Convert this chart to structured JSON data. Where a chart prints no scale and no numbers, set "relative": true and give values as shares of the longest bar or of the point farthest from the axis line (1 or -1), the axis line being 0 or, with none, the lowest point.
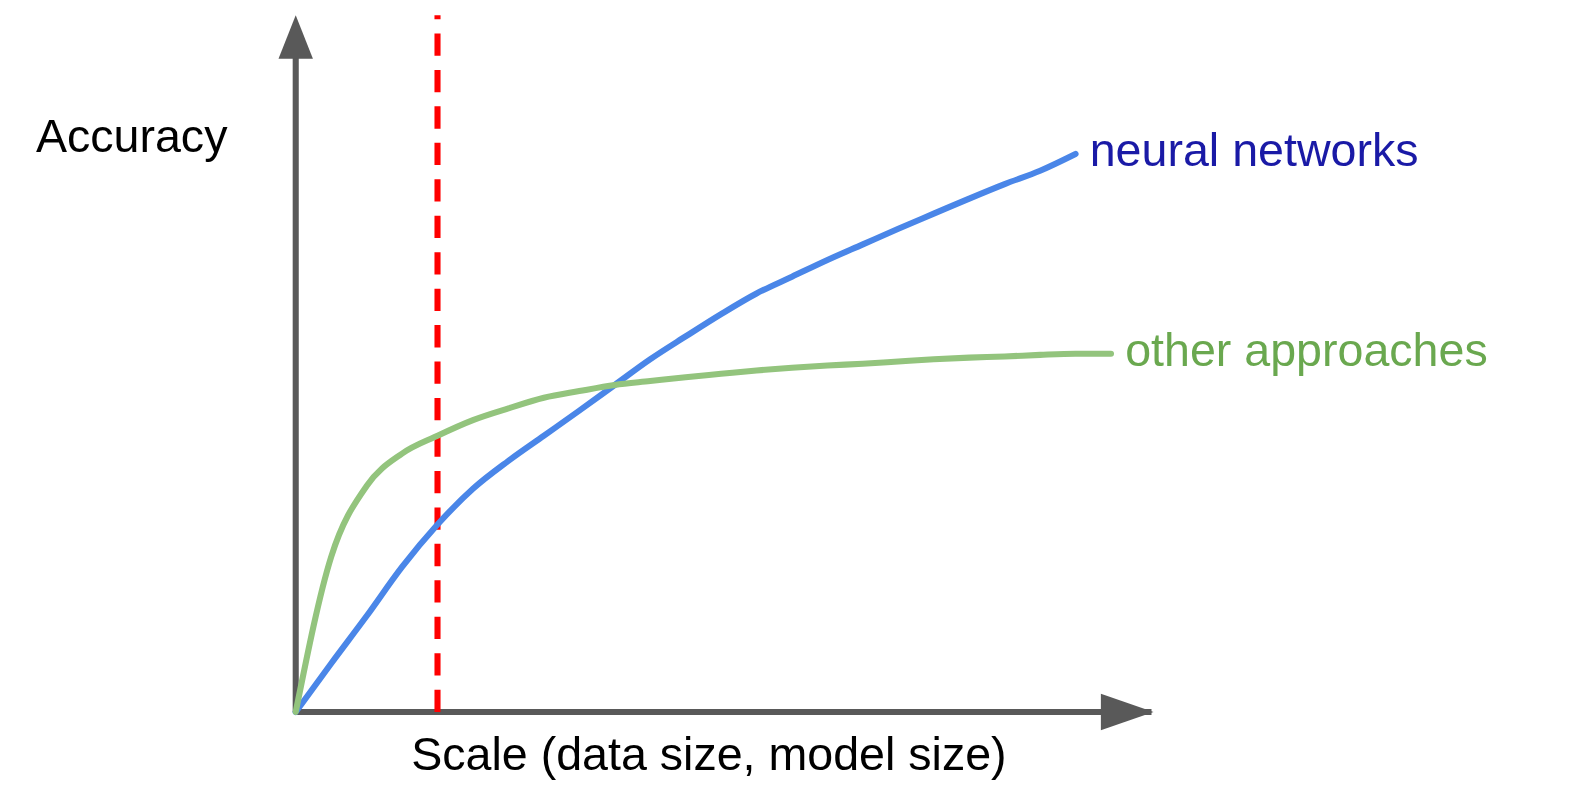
{
  "chart_data": {
    "type": "line",
    "relative": true,
    "xlabel": "Scale (data size, model size)",
    "ylabel": "Accuracy",
    "categories": [
      null,
      null,
      null,
      null,
      null,
      null,
      null,
      null,
      null,
      null,
      null,
      null,
      null,
      null,
      null,
      null,
      null,
      null,
      null,
      null,
      null,
      null,
      null,
      null
    ],
    "series": [
      {
        "name": "neural networks",
        "color": "#4a86e8",
        "values": [
          0,
          0.087,
          0.172,
          0.26,
          0.336,
          0.4,
          0.45,
          0.495,
          0.54,
          0.586,
          0.632,
          0.673,
          0.713,
          0.75,
          0.78,
          0.81,
          0.838,
          0.866,
          0.893,
          0.92,
          0.946,
          0.97,
          1,
          null
        ]
      },
      {
        "name": "other approaches",
        "color": "#93c47d",
        "values": [
          0,
          0.278,
          0.405,
          0.463,
          0.495,
          0.523,
          0.544,
          0.563,
          0.575,
          0.586,
          0.593,
          0.6,
          0.606,
          0.612,
          0.617,
          0.621,
          0.624,
          0.628,
          0.632,
          0.635,
          0.637,
          0.64,
          0.642,
          0.642
        ]
      }
    ]
  }
}
